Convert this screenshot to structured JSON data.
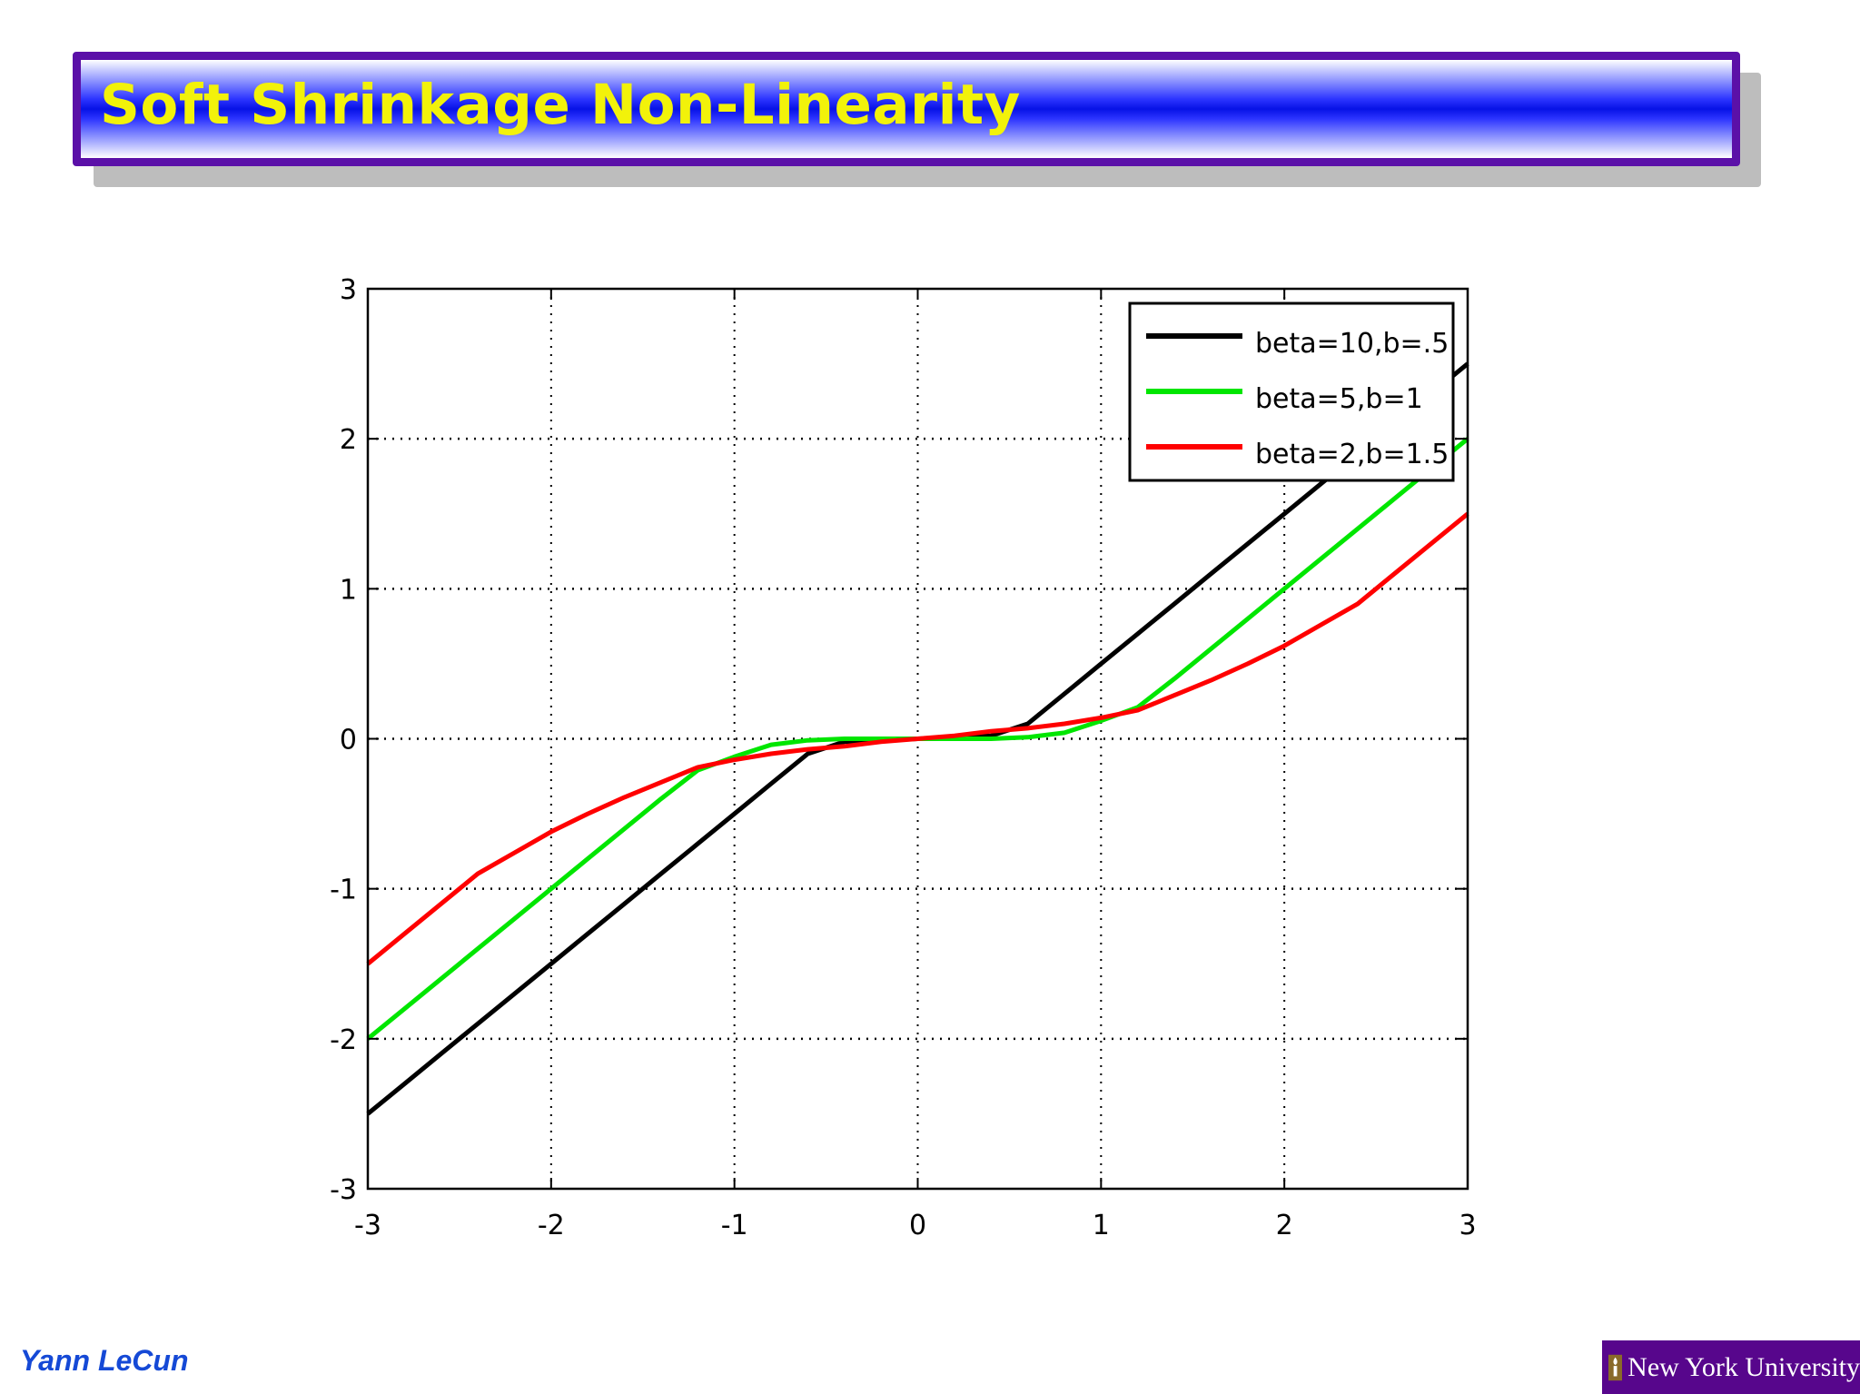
{
  "slide": {
    "title": "Soft Shrinkage Non-Linearity",
    "author": "Yann LeCun",
    "institution": "New York University",
    "title_color": "#f2f20a",
    "title_bar_color": "#0712e6",
    "title_border_color": "#5b10a8",
    "author_color": "#1549d6",
    "institution_bg": "#57068c"
  },
  "chart_data": {
    "type": "line",
    "title": "",
    "xlabel": "",
    "ylabel": "",
    "xlim": [
      -3,
      3
    ],
    "ylim": [
      -3,
      3
    ],
    "xticks": [
      -3,
      -2,
      -1,
      0,
      1,
      2,
      3
    ],
    "yticks": [
      -3,
      -2,
      -1,
      0,
      1,
      2,
      3
    ],
    "xtick_labels": [
      "-3",
      "-2",
      "-1",
      "0",
      "1",
      "2",
      "3"
    ],
    "ytick_labels": [
      "-3",
      "-2",
      "-1",
      "0",
      "1",
      "2",
      "3"
    ],
    "grid": true,
    "legend_position": "top-right",
    "x": [
      -3.0,
      -2.8,
      -2.6,
      -2.4,
      -2.2,
      -2.0,
      -1.8,
      -1.6,
      -1.4,
      -1.2,
      -1.0,
      -0.8,
      -0.6,
      -0.4,
      -0.2,
      0.0,
      0.2,
      0.4,
      0.6,
      0.8,
      1.0,
      1.2,
      1.4,
      1.6,
      1.8,
      2.0,
      2.2,
      2.4,
      2.6,
      2.8,
      3.0
    ],
    "series": [
      {
        "name": "beta=10,b=.5",
        "color": "#000000",
        "values": [
          -2.5,
          -2.3,
          -2.1,
          -1.9,
          -1.7,
          -1.5,
          -1.3,
          -1.1,
          -0.9,
          -0.7,
          -0.5,
          -0.3,
          -0.1,
          -0.02,
          -0.01,
          0.0,
          0.01,
          0.02,
          0.1,
          0.3,
          0.5,
          0.7,
          0.9,
          1.1,
          1.3,
          1.5,
          1.7,
          1.9,
          2.1,
          2.3,
          2.5
        ]
      },
      {
        "name": "beta=5,b=1",
        "color": "#00e600",
        "values": [
          -2.0,
          -1.8,
          -1.6,
          -1.4,
          -1.2,
          -1.0,
          -0.8,
          -0.6,
          -0.4,
          -0.21,
          -0.12,
          -0.04,
          -0.01,
          0.0,
          0.0,
          0.0,
          0.0,
          0.0,
          0.01,
          0.04,
          0.12,
          0.21,
          0.4,
          0.6,
          0.8,
          1.0,
          1.2,
          1.4,
          1.6,
          1.8,
          2.0
        ]
      },
      {
        "name": "beta=2,b=1.5",
        "color": "#ff0000",
        "values": [
          -1.5,
          -1.3,
          -1.1,
          -0.9,
          -0.76,
          -0.62,
          -0.5,
          -0.39,
          -0.29,
          -0.19,
          -0.14,
          -0.1,
          -0.07,
          -0.05,
          -0.02,
          0.0,
          0.02,
          0.05,
          0.07,
          0.1,
          0.14,
          0.19,
          0.29,
          0.39,
          0.5,
          0.62,
          0.76,
          0.9,
          1.1,
          1.3,
          1.5
        ]
      }
    ]
  }
}
